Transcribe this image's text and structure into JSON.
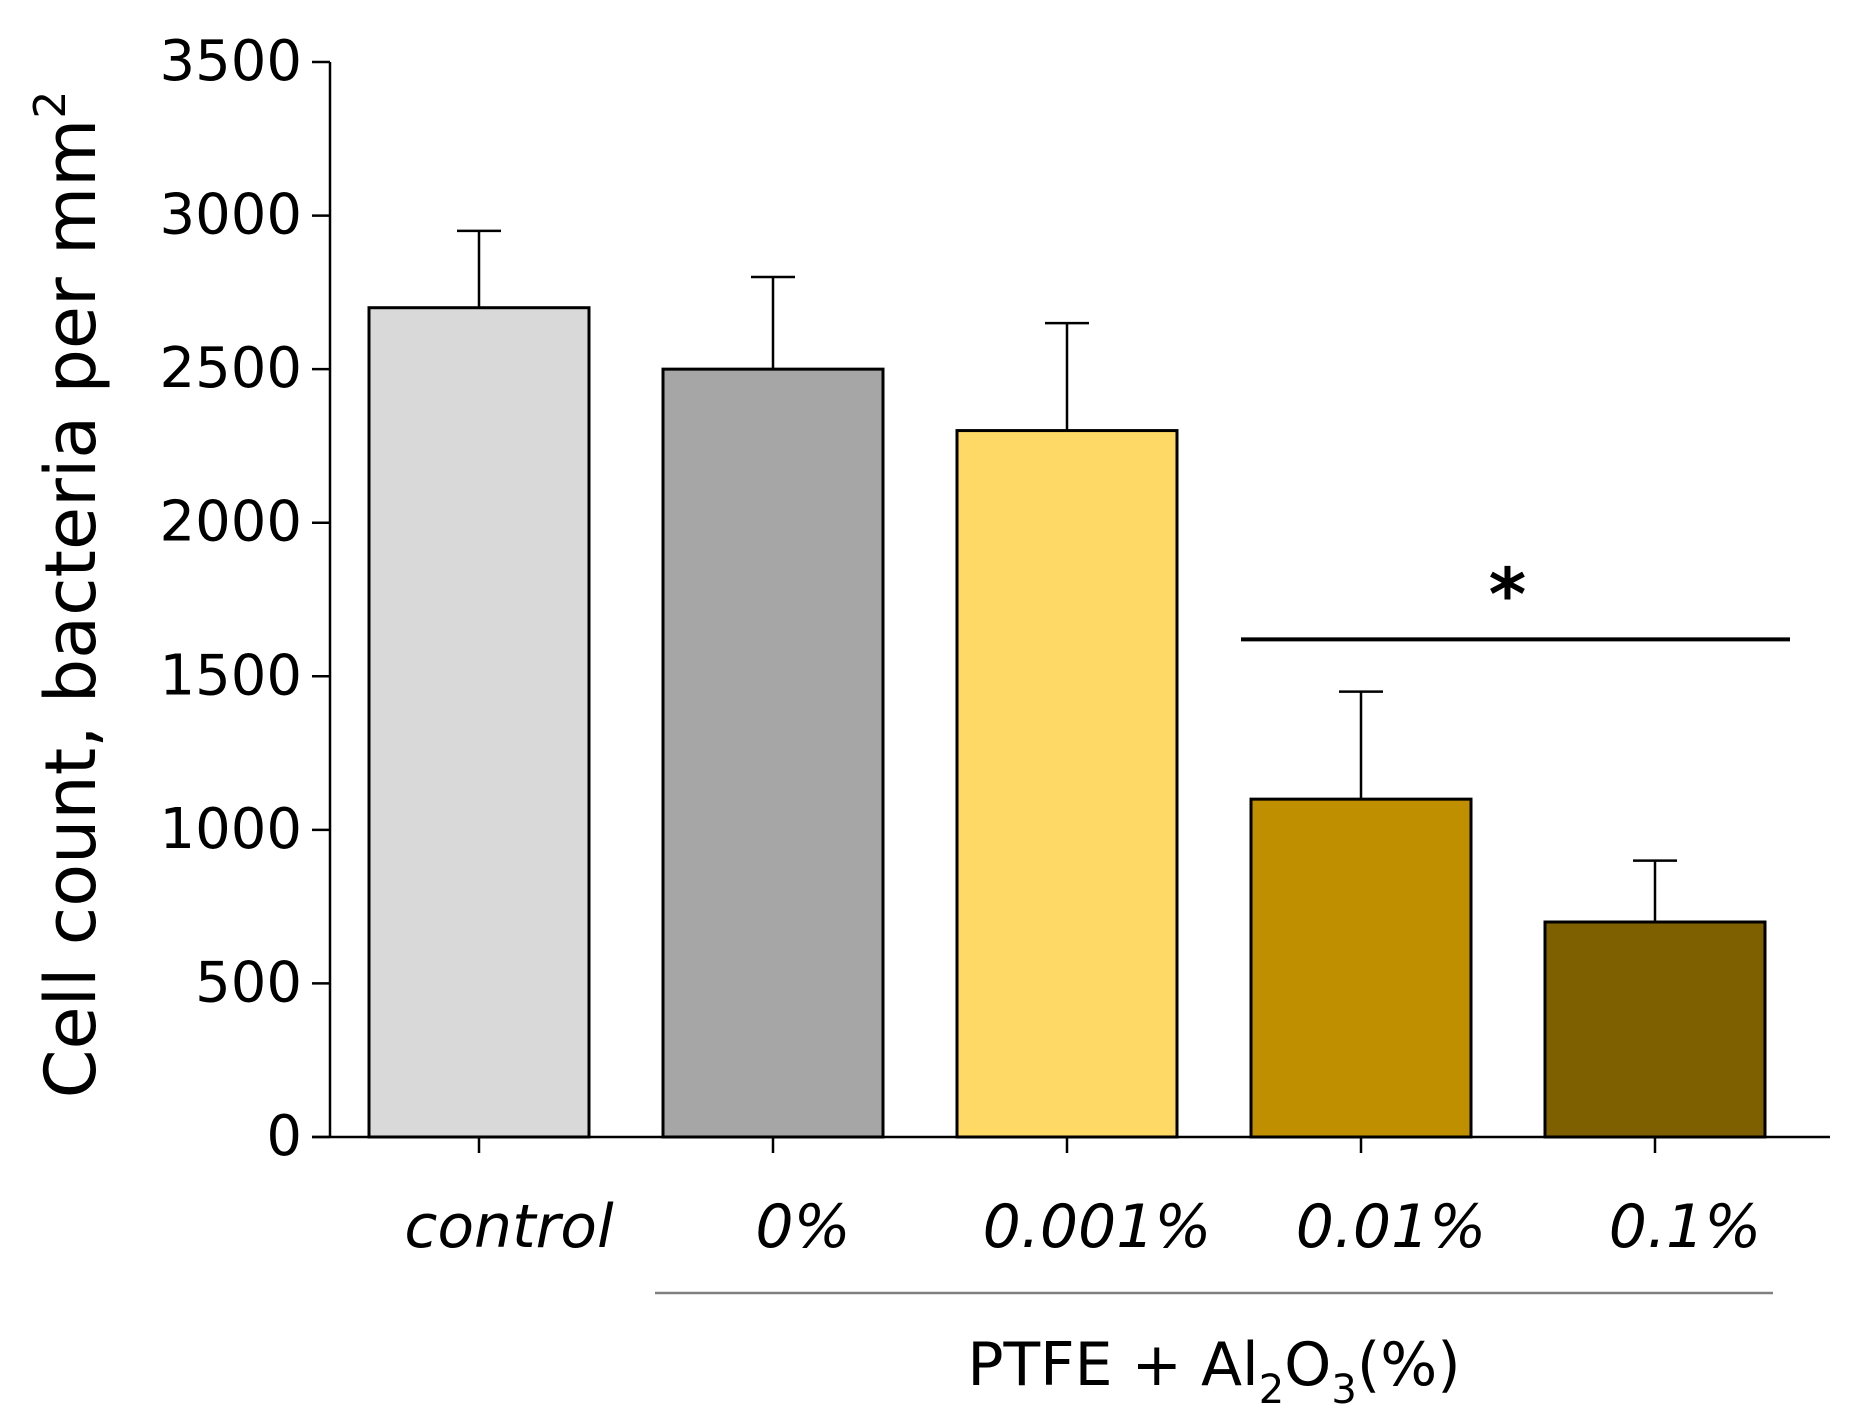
{
  "chart_data": {
    "type": "bar",
    "title": "",
    "categories": [
      "control",
      "0%",
      "0.001%",
      "0.01%",
      "0.1%"
    ],
    "values": [
      2700,
      2500,
      2300,
      1100,
      700
    ],
    "errors": [
      250,
      300,
      350,
      350,
      200
    ],
    "colors": [
      "#d9d9d9",
      "#a6a6a6",
      "#ffd966",
      "#bf8f00",
      "#7f6000"
    ],
    "ylabel": "Cell count, bacteria per mm",
    "ylabel_superscript": "2",
    "ylim": [
      0,
      3500
    ],
    "yticks": [
      0,
      500,
      1000,
      1500,
      2000,
      2500,
      3000,
      3500
    ],
    "group_label": {
      "prefix": "PTFE + Al",
      "sub1": "2",
      "middle": "O",
      "sub2": "3",
      "suffix": "(%)",
      "categories": [
        "0%",
        "0.001%",
        "0.01%",
        "0.1%"
      ]
    },
    "significance": {
      "symbol": "*",
      "categories": [
        "0.01%",
        "0.1%"
      ],
      "level": 1620
    },
    "grid": false
  }
}
